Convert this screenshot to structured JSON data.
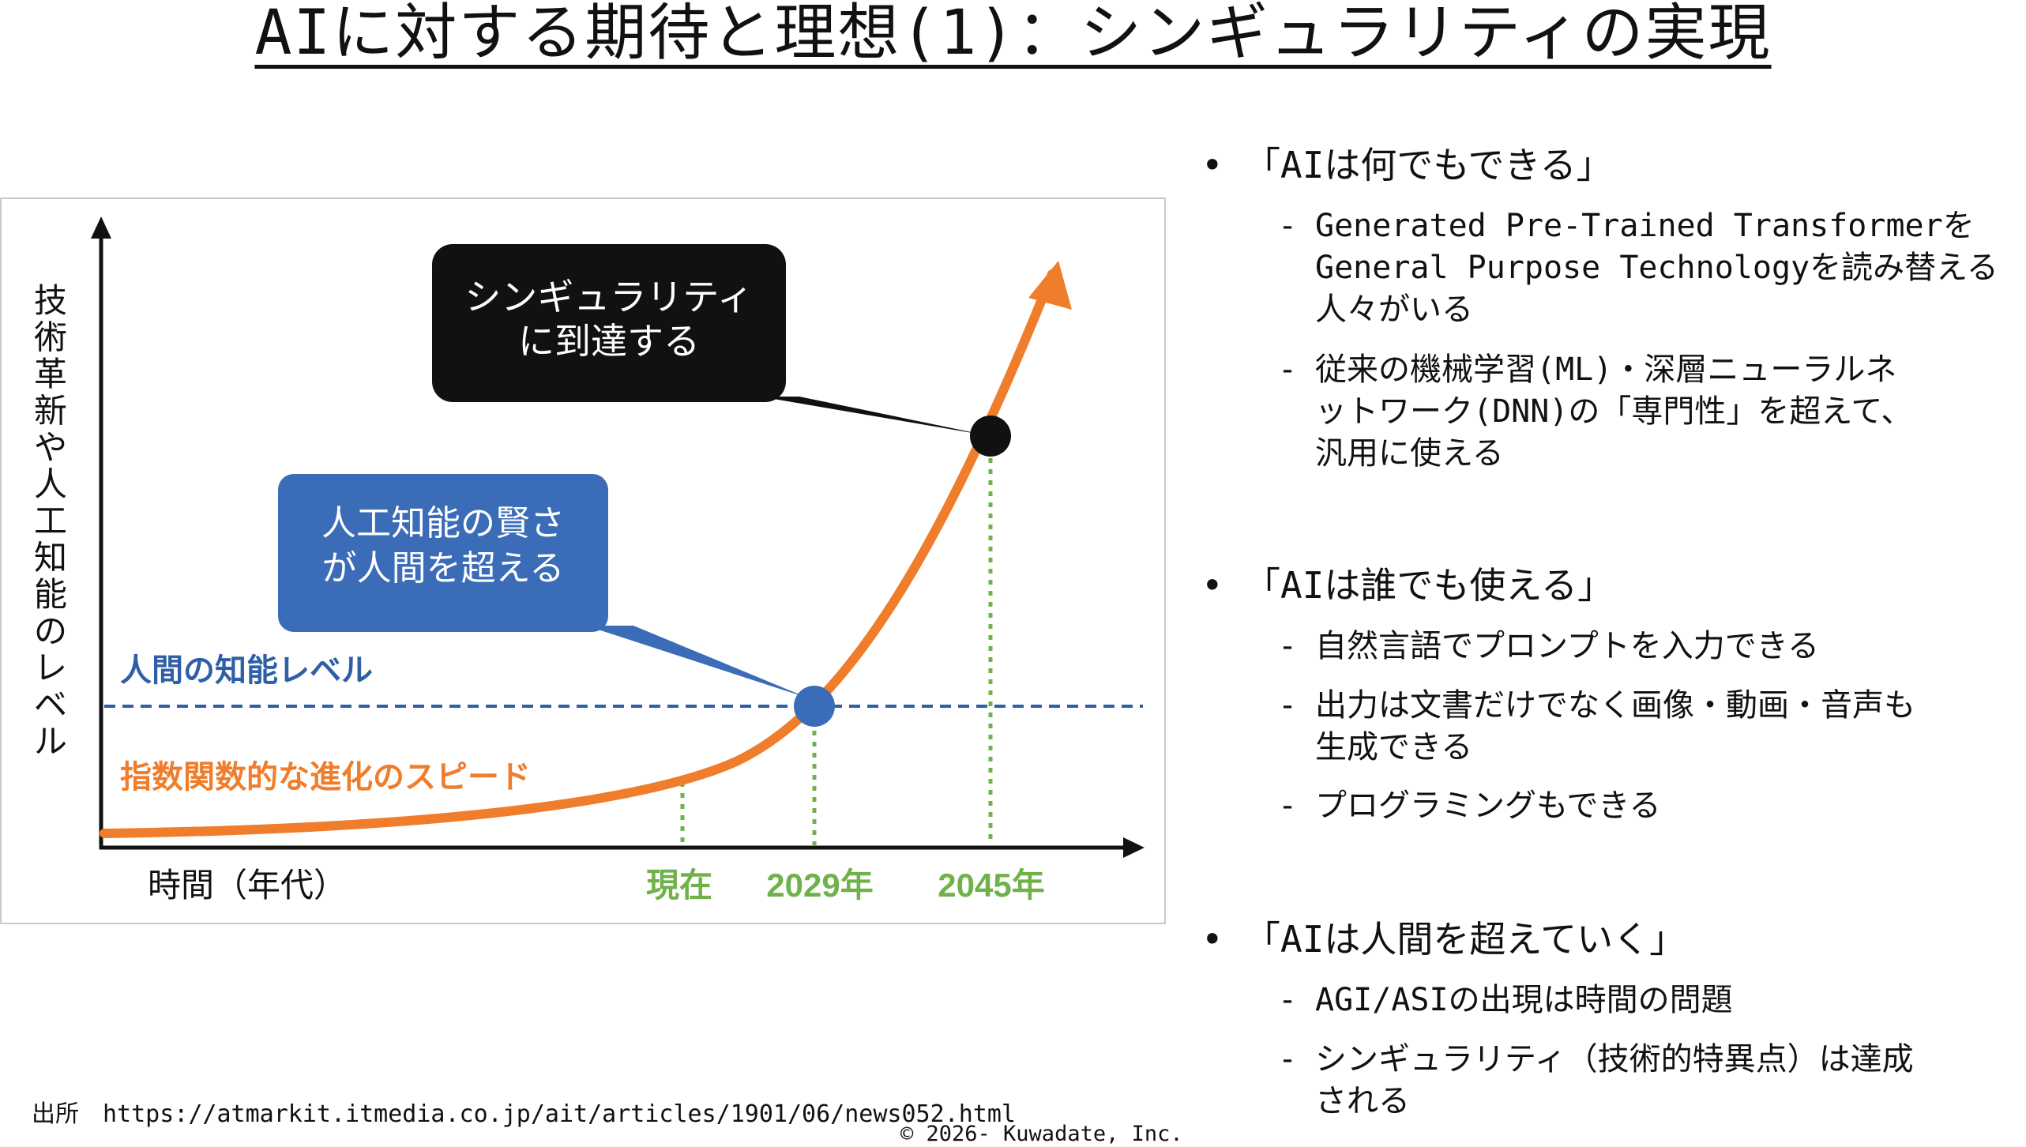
{
  "title": "AIに対する期待と理想(1)：シンギュラリティの実現",
  "figure": {
    "y_axis_label": "技術革新や人工知能のレベル",
    "x_axis_label": "時間（年代）",
    "human_level_label": "人間の知能レベル",
    "curve_label": "指数関数的な進化のスピード",
    "callout_singularity": [
      "シンギュラリティ",
      "に到達する"
    ],
    "callout_surpass": [
      "人工知能の賢さ",
      "が人間を超える"
    ],
    "x_ticks": [
      "現在",
      "2029年",
      "2045年"
    ],
    "colors": {
      "curve": "#ef7d2c",
      "human_line": "#2e5fa7",
      "tick_green": "#6fb24a",
      "callout_black": "#111111",
      "callout_blue": "#3b6cb7"
    }
  },
  "bullets": [
    {
      "head": "「AIは何でもできる」",
      "subs": [
        [
          "Generated Pre-Trained Transformerを",
          "General Purpose Technologyを読み替える",
          "人々がいる"
        ],
        [
          "従来の機械学習(ML)・深層ニューラルネ",
          "ットワーク(DNN)の「専門性」を超えて、",
          "汎用に使える"
        ]
      ]
    },
    {
      "head": "「AIは誰でも使える」",
      "subs": [
        [
          "自然言語でプロンプトを入力できる"
        ],
        [
          "出力は文書だけでなく画像・動画・音声も",
          "生成できる"
        ],
        [
          "プログラミングもできる"
        ]
      ]
    },
    {
      "head": "「AIは人間を超えていく」",
      "subs": [
        [
          "AGI/ASIの出現は時間の問題"
        ],
        [
          "シンギュラリティ（技術的特異点）は達成",
          "される"
        ]
      ]
    }
  ],
  "source": "出所　https://atmarkit.itmedia.co.jp/ait/articles/1901/06/news052.html",
  "copyright": "© 2026- Kuwadate, Inc."
}
